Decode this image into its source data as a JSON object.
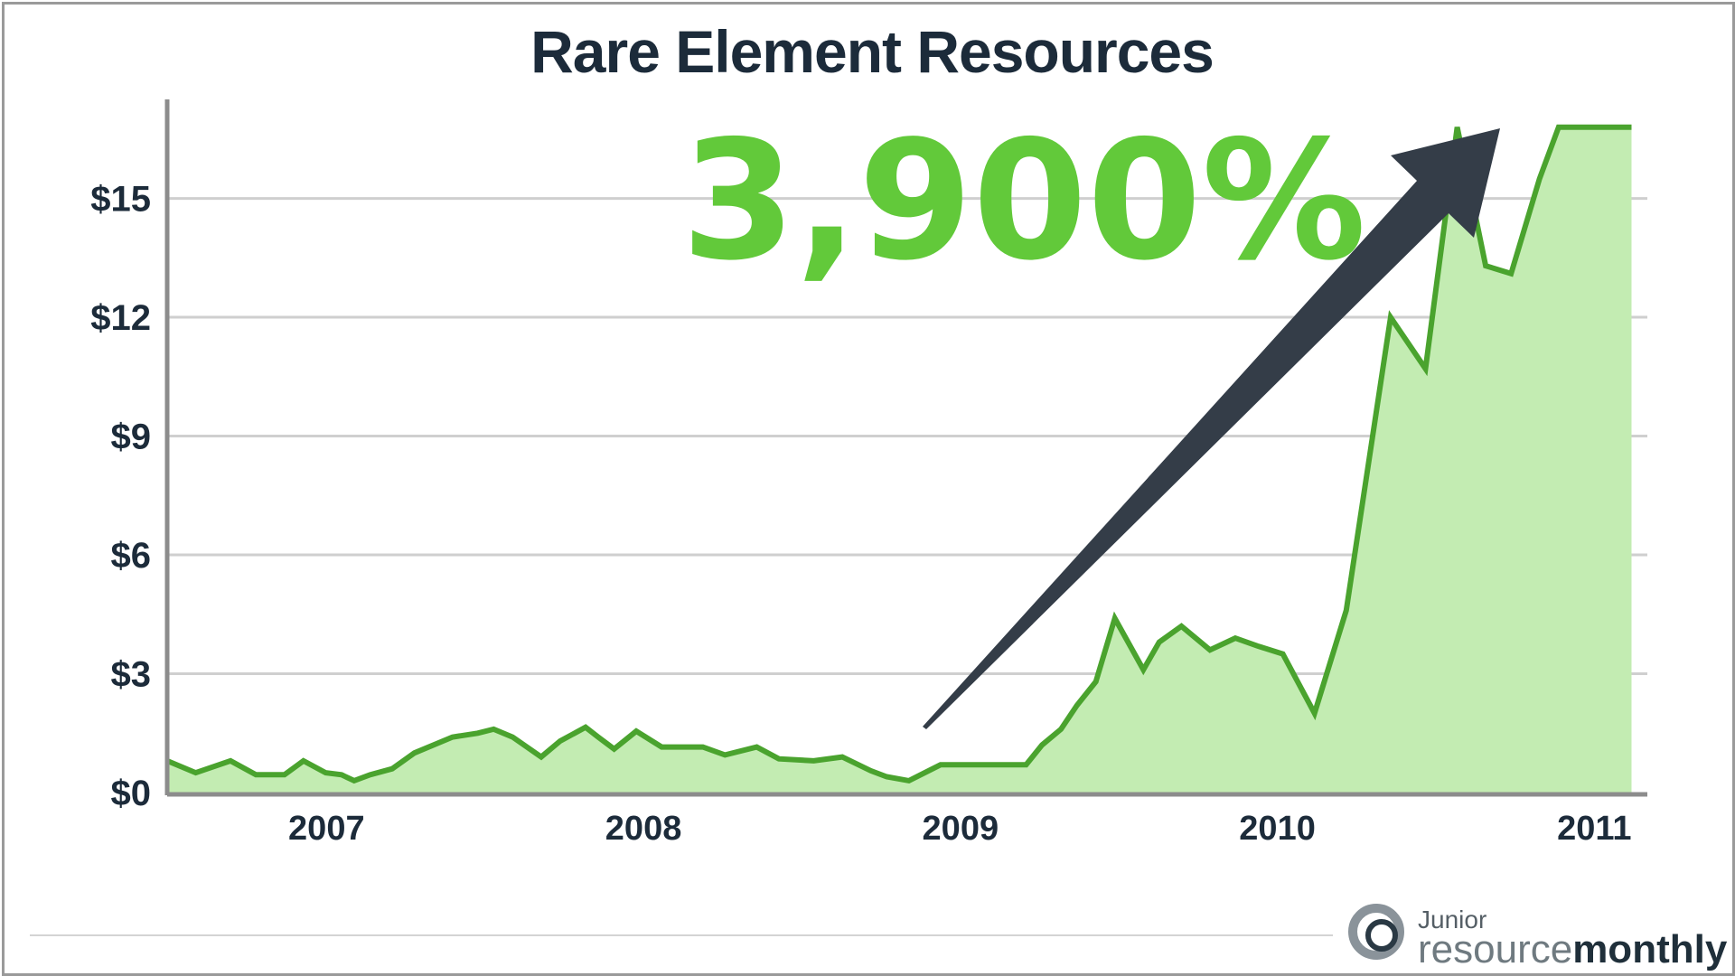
{
  "colors": {
    "title": "#1c2b3a",
    "callout": "#62c93a",
    "line": "#4aa32e",
    "area": "#c3ecb2",
    "arrow": "#343d48",
    "grid": "#cfcfcf",
    "axis": "#8c8c8c"
  },
  "callout": {
    "text": "3,900%"
  },
  "logo": {
    "junior": "Junior",
    "resource": "resource",
    "monthly": "monthly",
    "icon": "ring-logo-icon"
  },
  "chart_data": {
    "type": "area",
    "title": "Rare Element Resources",
    "xlabel": "",
    "ylabel": "",
    "y_ticks": [
      {
        "label": "$0",
        "value": 0
      },
      {
        "label": "$3",
        "value": 3
      },
      {
        "label": "$6",
        "value": 6
      },
      {
        "label": "$9",
        "value": 9
      },
      {
        "label": "$12",
        "value": 12
      },
      {
        "label": "$15",
        "value": 15
      }
    ],
    "x_ticks": [
      {
        "label": "2007",
        "value": 2007.0
      },
      {
        "label": "2008",
        "value": 2008.0
      },
      {
        "label": "2009",
        "value": 2009.0
      },
      {
        "label": "2010",
        "value": 2010.0
      },
      {
        "label": "2011",
        "value": 2011.0
      }
    ],
    "xlim": [
      2006.56,
      2011.23
    ],
    "ylim": [
      0,
      17.5
    ],
    "grid": true,
    "series": [
      {
        "x": [
          2006.56,
          2006.65,
          2006.76,
          2006.84,
          2006.93,
          2006.99,
          2007.06,
          2007.11,
          2007.15,
          2007.2,
          2007.27,
          2007.34,
          2007.46,
          2007.54,
          2007.59,
          2007.65,
          2007.74,
          2007.8,
          2007.88,
          2007.92,
          2007.97,
          2008.04,
          2008.12,
          2008.25,
          2008.32,
          2008.42,
          2008.49,
          2008.6,
          2008.69,
          2008.78,
          2008.83,
          2008.9,
          2009.0,
          2009.1,
          2009.2,
          2009.27,
          2009.32,
          2009.38,
          2009.43,
          2009.49,
          2009.55,
          2009.64,
          2009.69,
          2009.76,
          2009.85,
          2009.93,
          2010.0,
          2010.08,
          2010.18,
          2010.28,
          2010.42,
          2010.53,
          2010.63,
          2010.72,
          2010.8,
          2010.89,
          2010.95,
          2011.05,
          2011.18
        ],
        "y": [
          0.8,
          0.5,
          0.8,
          0.45,
          0.45,
          0.8,
          0.5,
          0.45,
          0.3,
          0.45,
          0.6,
          1.0,
          1.4,
          1.5,
          1.6,
          1.4,
          0.9,
          1.3,
          1.65,
          1.4,
          1.1,
          1.55,
          1.15,
          1.15,
          0.95,
          1.15,
          0.85,
          0.8,
          0.9,
          0.55,
          0.4,
          0.3,
          0.7,
          0.7,
          0.7,
          0.7,
          1.2,
          1.6,
          2.2,
          2.8,
          4.4,
          3.1,
          3.8,
          4.2,
          3.6,
          3.9,
          3.7,
          3.5,
          2.0,
          4.6,
          12.0,
          10.7,
          16.8,
          13.3,
          13.1,
          15.5,
          16.8,
          16.8,
          16.8
        ],
        "y_note_unused": false
      }
    ]
  }
}
